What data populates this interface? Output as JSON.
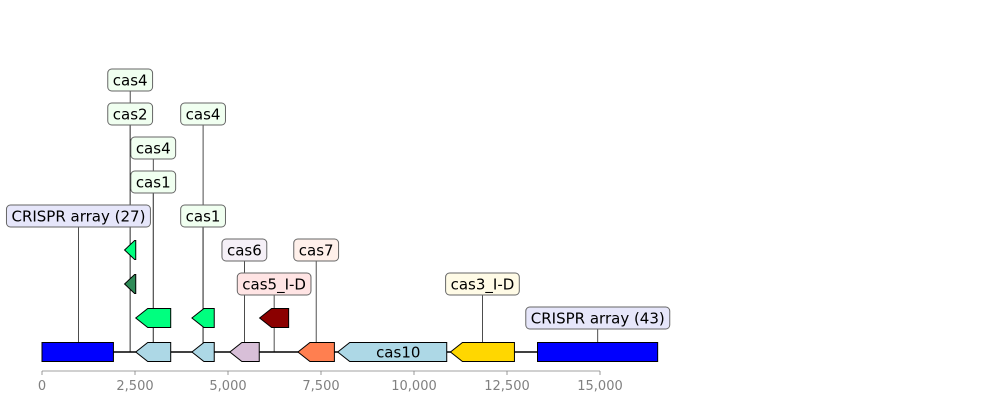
{
  "chart_data": {
    "type": "gene-map",
    "x_axis": {
      "ticks": [
        {
          "value": 0,
          "label": "0"
        },
        {
          "value": 2500,
          "label": "2,500"
        },
        {
          "value": 5000,
          "label": "5,000"
        },
        {
          "value": 7500,
          "label": "7,500"
        },
        {
          "value": 10000,
          "label": "10,000"
        },
        {
          "value": 12500,
          "label": "12,500"
        },
        {
          "value": 15000,
          "label": "15,000"
        }
      ]
    },
    "features": [
      {
        "label": "CRISPR array (27)",
        "start": 0,
        "end": 1920,
        "strand": 0,
        "level": 0,
        "color": "#0000ff"
      },
      {
        "label": "",
        "start": 2520,
        "end": 3460,
        "strand": -1,
        "level": 0,
        "color": "#add8e6"
      },
      {
        "label": "",
        "start": 4030,
        "end": 4630,
        "strand": -1,
        "level": 0,
        "color": "#add8e6"
      },
      {
        "label": "cas6",
        "start": 5050,
        "end": 5840,
        "strand": -1,
        "level": 0,
        "color": "#d8bfd8"
      },
      {
        "label": "cas7",
        "start": 6880,
        "end": 7860,
        "strand": -1,
        "level": 0,
        "color": "#ff7f50"
      },
      {
        "label": "cas10",
        "start": 7950,
        "end": 10880,
        "strand": -1,
        "level": 0,
        "color": "#add8e6",
        "inline_label": true
      },
      {
        "label": "cas3_I-D",
        "start": 10980,
        "end": 12700,
        "strand": -1,
        "level": 0,
        "color": "#ffd700"
      },
      {
        "label": "CRISPR array (43)",
        "start": 13320,
        "end": 16550,
        "strand": 0,
        "level": 0,
        "color": "#0000ff"
      },
      {
        "label": "cas1",
        "start": 2520,
        "end": 3460,
        "strand": -1,
        "level": 1,
        "color": "#00ff7f"
      },
      {
        "label": "cas1",
        "start": 4030,
        "end": 4630,
        "strand": -1,
        "level": 1,
        "color": "#00ff7f"
      },
      {
        "label": "cas5_I-D",
        "start": 5850,
        "end": 6630,
        "strand": -1,
        "level": 1,
        "color": "#8b0000"
      },
      {
        "label": "cas4",
        "start": 2220,
        "end": 2520,
        "strand": -1,
        "level": 2,
        "color": "#2e8b57"
      },
      {
        "label": "cas2",
        "start": 2220,
        "end": 2520,
        "strand": -1,
        "level": 3,
        "color": "#00ff7f"
      },
      {
        "label": "cas4",
        "start": 2220,
        "end": 2520,
        "strand": -1,
        "level": 4,
        "color": "#00ff7f"
      }
    ],
    "annotations": [
      {
        "text": "CRISPR array (27)",
        "x": 980,
        "box_color": "#e6e6fa",
        "row": 4
      },
      {
        "text": "cas1",
        "x": 2990,
        "box_color": "#f0fff0",
        "row": 5
      },
      {
        "text": "cas4",
        "x": 2990,
        "box_color": "#f0fff0",
        "row": 6
      },
      {
        "text": "cas2",
        "x": 2370,
        "box_color": "#f0fff0",
        "row": 7
      },
      {
        "text": "cas4",
        "x": 2370,
        "box_color": "#f0fff0",
        "row": 8
      },
      {
        "text": "cas1",
        "x": 4330,
        "box_color": "#f0fff0",
        "row": 4
      },
      {
        "text": "cas4",
        "x": 4330,
        "box_color": "#f0fff0",
        "row": 7
      },
      {
        "text": "cas6",
        "x": 5440,
        "box_color": "#f5f0f7",
        "row": 3
      },
      {
        "text": "cas5_I-D",
        "x": 6240,
        "box_color": "#ffe4e4",
        "row": 2
      },
      {
        "text": "cas7",
        "x": 7370,
        "box_color": "#fff0ea",
        "row": 3
      },
      {
        "text": "cas3_I-D",
        "x": 11840,
        "box_color": "#fffbe6",
        "row": 2
      },
      {
        "text": "CRISPR array (43)",
        "x": 14940,
        "box_color": "#e6e6fa",
        "row": 1
      }
    ]
  }
}
